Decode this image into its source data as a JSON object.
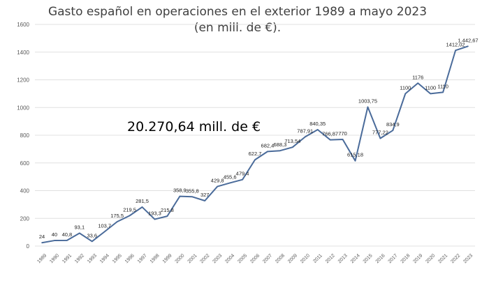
{
  "chart_data": {
    "type": "line",
    "title": "Gasto español en operaciones en el exterior 1989 a mayo 2023",
    "subtitle": "(en mill. de €).",
    "annotation": "20.270,64 mill. de €",
    "xlabel": "",
    "ylabel": "",
    "ylim": [
      0,
      1600
    ],
    "yticks": [
      0,
      200,
      400,
      600,
      800,
      1000,
      1200,
      1400,
      1600
    ],
    "grid": true,
    "line_color": "#4a6b9a",
    "categories": [
      "1989",
      "1990",
      "1991",
      "1992",
      "1993",
      "1994",
      "1995",
      "1996",
      "1997",
      "1998",
      "1999",
      "2000",
      "2001",
      "2002",
      "2003",
      "2004",
      "2005",
      "2006",
      "2007",
      "2008",
      "2009",
      "2010",
      "2011",
      "2012",
      "2013",
      "2014",
      "2015",
      "2016",
      "2017",
      "2018",
      "2019",
      "2020",
      "2021",
      "2022",
      "2023"
    ],
    "values": [
      24,
      40,
      40.8,
      93.1,
      33.6,
      103.7,
      175.5,
      219.5,
      281.5,
      193.3,
      215.8,
      358.9,
      355.8,
      327,
      429.8,
      455.6,
      479.4,
      622.7,
      682.4,
      688.3,
      713.54,
      787.91,
      840.35,
      766.87,
      770,
      615.18,
      1003.75,
      777.22,
      834.9,
      1100,
      1176,
      1100,
      1110,
      1412.02,
      1442.67
    ],
    "data_labels": [
      "24",
      "40",
      "40,8",
      "93,1",
      "33,6",
      "103,7",
      "175,5",
      "219,5",
      "281,5",
      "193,3",
      "215,8",
      "358,9",
      "355,8",
      "327",
      "429,8",
      "455,6",
      "479,4",
      "622,7",
      "682,4",
      "688,3",
      "713,54",
      "787,91",
      "840,35",
      "766,87",
      "770",
      "615,18",
      "1003,75",
      "777,22",
      "834,9",
      "1100",
      "1176",
      "1100",
      "1110",
      "1412,02",
      "1.442,67"
    ]
  }
}
